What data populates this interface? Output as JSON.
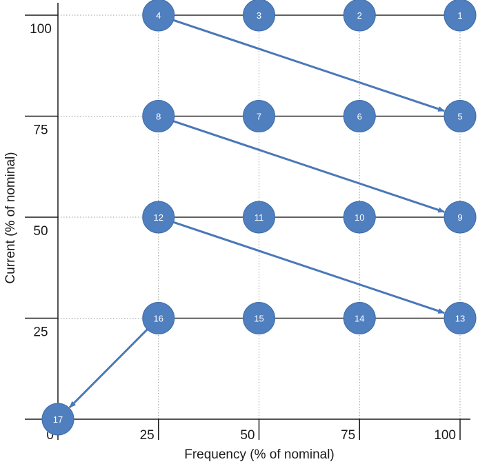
{
  "chart_data": {
    "type": "scatter",
    "xlabel": "Frequency (% of nominal)",
    "ylabel": "Current (% of nominal)",
    "xlim": [
      0,
      100
    ],
    "ylim": [
      0,
      100
    ],
    "x_ticks": [
      "0",
      "25",
      "50",
      "75",
      "100"
    ],
    "y_ticks": [
      "25",
      "50",
      "75",
      "100"
    ],
    "grid": "dotted vertical/horizontal guides at tick positions",
    "points": [
      {
        "label": "1",
        "x": 100,
        "y": 100
      },
      {
        "label": "2",
        "x": 75,
        "y": 100
      },
      {
        "label": "3",
        "x": 50,
        "y": 100
      },
      {
        "label": "4",
        "x": 25,
        "y": 100
      },
      {
        "label": "5",
        "x": 100,
        "y": 75
      },
      {
        "label": "6",
        "x": 75,
        "y": 75
      },
      {
        "label": "7",
        "x": 50,
        "y": 75
      },
      {
        "label": "8",
        "x": 25,
        "y": 75
      },
      {
        "label": "9",
        "x": 100,
        "y": 50
      },
      {
        "label": "10",
        "x": 75,
        "y": 50
      },
      {
        "label": "11",
        "x": 50,
        "y": 50
      },
      {
        "label": "12",
        "x": 25,
        "y": 50
      },
      {
        "label": "13",
        "x": 100,
        "y": 25
      },
      {
        "label": "14",
        "x": 75,
        "y": 25
      },
      {
        "label": "15",
        "x": 50,
        "y": 25
      },
      {
        "label": "16",
        "x": 25,
        "y": 25
      },
      {
        "label": "17",
        "x": 0,
        "y": 0
      }
    ],
    "row_lines": [
      {
        "y": 100,
        "from": 25,
        "to": 100
      },
      {
        "y": 75,
        "from": 25,
        "to": 100
      },
      {
        "y": 50,
        "from": 25,
        "to": 100
      },
      {
        "y": 25,
        "from": 25,
        "to": 100
      }
    ],
    "arrows": [
      {
        "from": "4",
        "to": "5"
      },
      {
        "from": "8",
        "to": "9"
      },
      {
        "from": "12",
        "to": "13"
      },
      {
        "from": "16",
        "to": "17"
      }
    ],
    "colors": {
      "node_fill": "#4f7fbf",
      "node_stroke": "#3c6aa8",
      "arrow": "#4a78b8",
      "row_line": "#2b2b2b",
      "axis": "#1a1a1a",
      "guide": "#9a9a9a"
    }
  }
}
